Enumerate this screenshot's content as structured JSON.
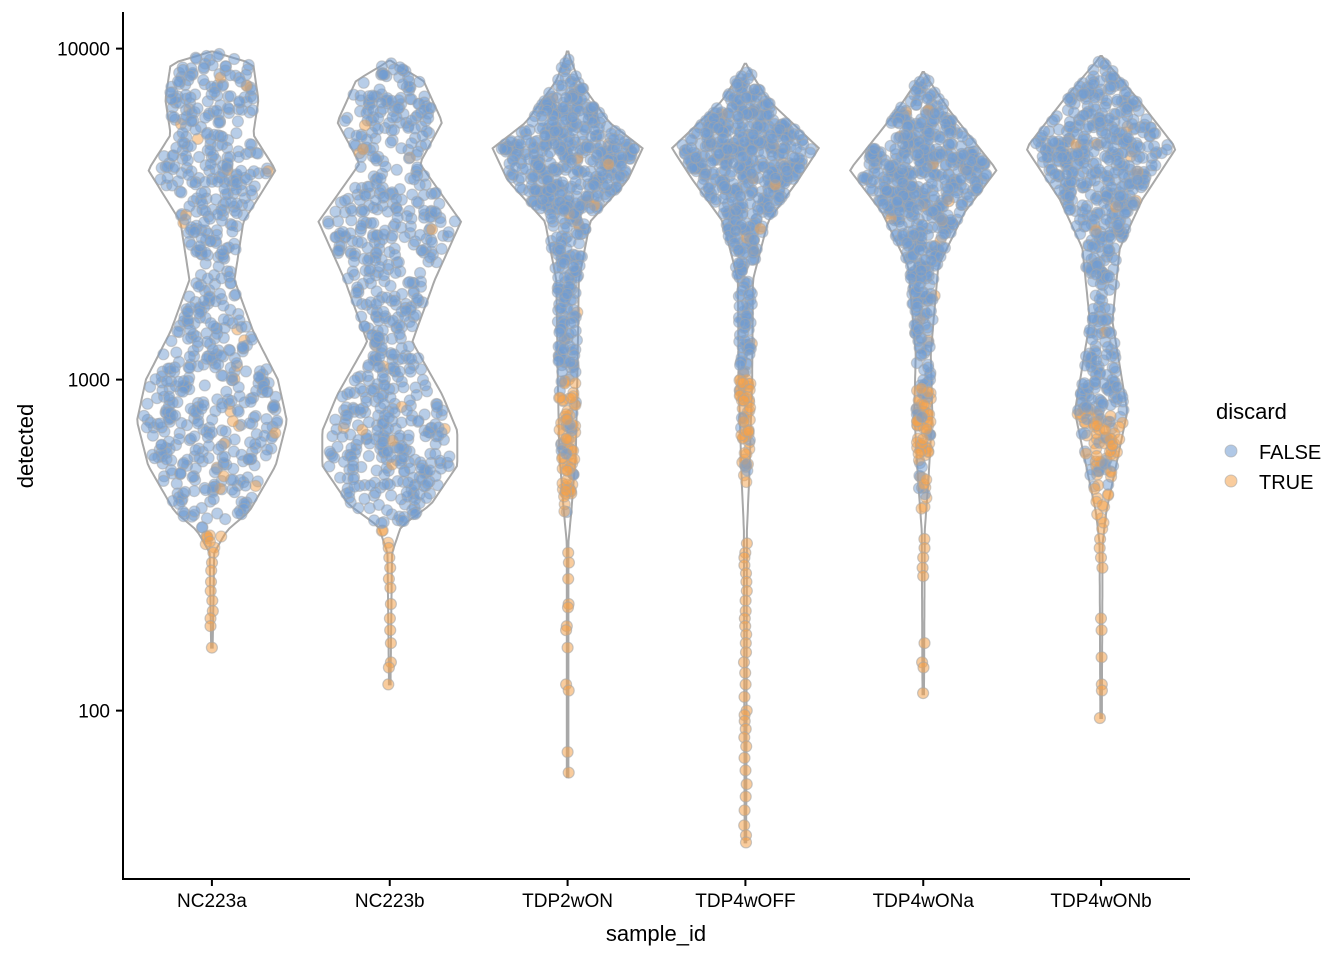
{
  "chart_data": {
    "type": "violin",
    "xlabel": "sample_id",
    "ylabel": "detected",
    "y_scale": "log10",
    "ylim": [
      31,
      12900
    ],
    "y_ticks": [
      100,
      1000,
      10000
    ],
    "y_tick_labels": [
      "100",
      "1000",
      "10000"
    ],
    "categories": [
      "NC223a",
      "NC223b",
      "TDP2wON",
      "TDP4wOFF",
      "TDP4wONa",
      "TDP4wONb"
    ],
    "legend": {
      "title": "discard",
      "placement": "right",
      "entries": [
        {
          "label": "FALSE",
          "color": "#6f9bd1"
        },
        {
          "label": "TRUE",
          "color": "#f4a24c"
        }
      ]
    },
    "colors": {
      "violin_outline": "#a8a8a8",
      "false": "#6f9bd1",
      "true": "#f4a24c"
    },
    "violins": [
      {
        "sample": "NC223a",
        "max": 9800,
        "min": 155,
        "discard_below": 340,
        "density": [
          [
            9800,
            0
          ],
          [
            9000,
            0.55
          ],
          [
            7000,
            0.62
          ],
          [
            5500,
            0.55
          ],
          [
            4300,
            0.85
          ],
          [
            3000,
            0.42
          ],
          [
            2000,
            0.3
          ],
          [
            1400,
            0.55
          ],
          [
            1000,
            0.88
          ],
          [
            750,
            1.0
          ],
          [
            550,
            0.85
          ],
          [
            400,
            0.5
          ],
          [
            350,
            0.2
          ],
          [
            300,
            0.03
          ],
          [
            155,
            0.01
          ]
        ],
        "tail_true": [
          300,
          280,
          265,
          245,
          230,
          215,
          200,
          190,
          180,
          155
        ]
      },
      {
        "sample": "NC223b",
        "max": 9200,
        "min": 120,
        "discard_below": 360,
        "density": [
          [
            9200,
            0
          ],
          [
            8000,
            0.45
          ],
          [
            6000,
            0.7
          ],
          [
            4500,
            0.4
          ],
          [
            3000,
            0.95
          ],
          [
            2000,
            0.6
          ],
          [
            1300,
            0.3
          ],
          [
            900,
            0.7
          ],
          [
            700,
            0.9
          ],
          [
            550,
            0.9
          ],
          [
            420,
            0.55
          ],
          [
            360,
            0.15
          ],
          [
            300,
            0.03
          ],
          [
            120,
            0.01
          ]
        ],
        "tail_true": [
          310,
          290,
          270,
          250,
          235,
          210,
          190,
          175,
          160,
          140,
          135,
          120
        ]
      },
      {
        "sample": "TDP2wON",
        "max": 9800,
        "min": 63,
        "discard_below": 1000,
        "density": [
          [
            9800,
            0
          ],
          [
            8000,
            0.15
          ],
          [
            6000,
            0.55
          ],
          [
            5000,
            1.0
          ],
          [
            4000,
            0.8
          ],
          [
            3000,
            0.3
          ],
          [
            2000,
            0.15
          ],
          [
            1000,
            0.13
          ],
          [
            600,
            0.11
          ],
          [
            400,
            0.05
          ],
          [
            320,
            0.01
          ],
          [
            63,
            0.01
          ]
        ],
        "tail_true": [
          300,
          280,
          250,
          210,
          205,
          180,
          175,
          155,
          120,
          115,
          75,
          65
        ]
      },
      {
        "sample": "TDP4wOFF",
        "max": 9000,
        "min": 40,
        "discard_below": 1050,
        "density": [
          [
            9000,
            0
          ],
          [
            7000,
            0.3
          ],
          [
            5000,
            0.98
          ],
          [
            4000,
            0.7
          ],
          [
            3000,
            0.3
          ],
          [
            2000,
            0.1
          ],
          [
            1000,
            0.09
          ],
          [
            500,
            0.05
          ],
          [
            350,
            0.02
          ],
          [
            40,
            0.01
          ]
        ],
        "tail_true": [
          320,
          300,
          290,
          275,
          260,
          245,
          230,
          215,
          200,
          190,
          180,
          170,
          160,
          150,
          140,
          130,
          120,
          110,
          100,
          97,
          93,
          88,
          83,
          78,
          72,
          66,
          60,
          55,
          50,
          45,
          42,
          40
        ]
      },
      {
        "sample": "TDP4wONa",
        "max": 8500,
        "min": 112,
        "discard_below": 950,
        "density": [
          [
            8500,
            0
          ],
          [
            6500,
            0.35
          ],
          [
            4300,
            0.98
          ],
          [
            3200,
            0.55
          ],
          [
            2200,
            0.2
          ],
          [
            1200,
            0.1
          ],
          [
            800,
            0.12
          ],
          [
            500,
            0.07
          ],
          [
            350,
            0.02
          ],
          [
            112,
            0.01
          ]
        ],
        "tail_true": [
          330,
          310,
          290,
          270,
          255,
          160,
          140,
          135,
          113
        ]
      },
      {
        "sample": "TDP4wONb",
        "max": 9500,
        "min": 95,
        "discard_below": 800,
        "density": [
          [
            9500,
            0
          ],
          [
            7000,
            0.5
          ],
          [
            5000,
            1.0
          ],
          [
            3500,
            0.55
          ],
          [
            2500,
            0.25
          ],
          [
            1500,
            0.15
          ],
          [
            800,
            0.35
          ],
          [
            550,
            0.2
          ],
          [
            400,
            0.07
          ],
          [
            320,
            0.02
          ],
          [
            95,
            0.01
          ]
        ],
        "tail_true": [
          330,
          310,
          290,
          270,
          190,
          175,
          145,
          120,
          115,
          95
        ]
      }
    ]
  }
}
